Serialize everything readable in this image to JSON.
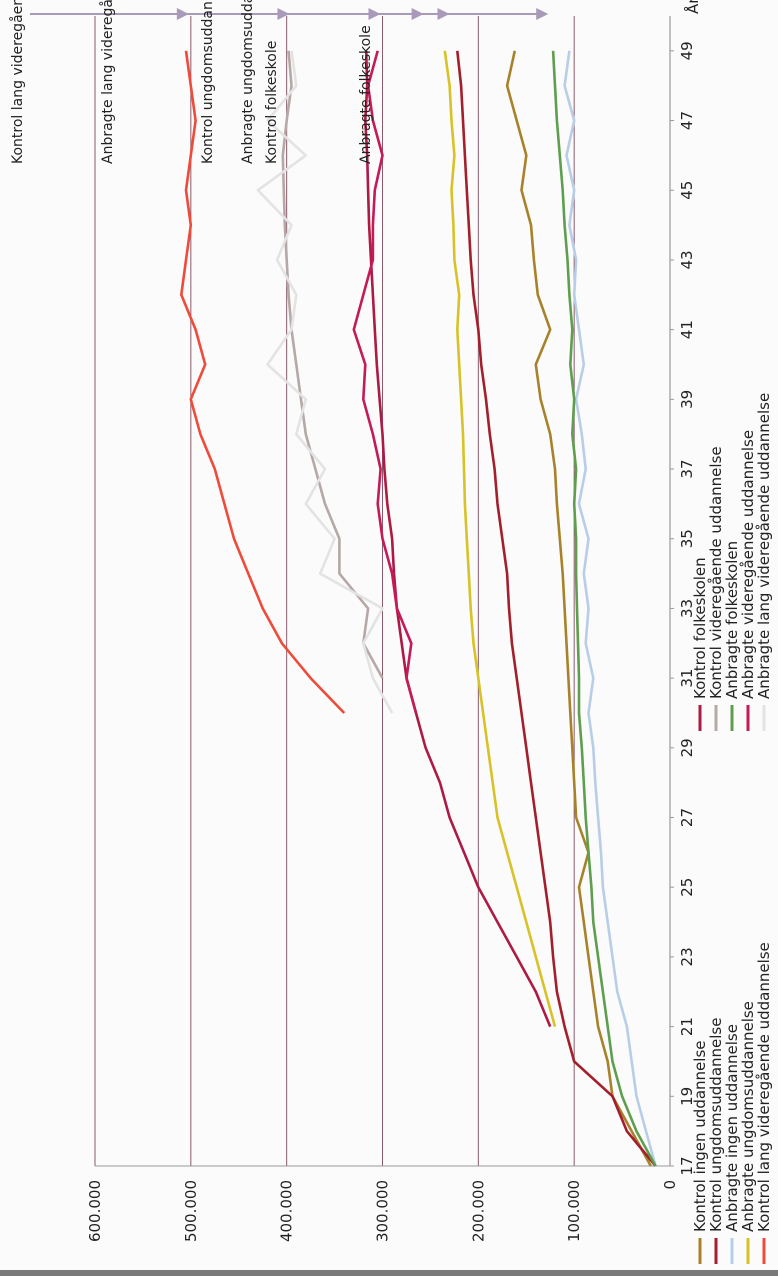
{
  "chart_data": {
    "type": "line",
    "title": "",
    "xlabel": "År",
    "ylabel": "",
    "xlim": [
      17,
      50
    ],
    "ylim": [
      0,
      600000
    ],
    "x_ticks": [
      17,
      19,
      21,
      23,
      25,
      27,
      29,
      31,
      33,
      35,
      37,
      39,
      41,
      43,
      45,
      47,
      49
    ],
    "y_ticks": [
      "0",
      "100.000",
      "200.000",
      "300.000",
      "400.000",
      "500.000",
      "600.000"
    ],
    "y_tick_values": [
      0,
      100000,
      200000,
      300000,
      400000,
      500000,
      600000
    ],
    "grid": "horizontal",
    "legend_position": "bottom",
    "series": [
      {
        "name": "Kontrol ingen uddannelse",
        "color": "#a8822a",
        "x_start": 17,
        "values": [
          20000,
          40000,
          60000,
          65000,
          75000,
          80000,
          85000,
          90000,
          95000,
          85000,
          98000,
          100000,
          102000,
          104000,
          106000,
          108000,
          110000,
          112000,
          115000,
          118000,
          120000,
          125000,
          135000,
          140000,
          125000,
          138000,
          142000,
          145000,
          155000,
          150000,
          160000,
          170000,
          162000
        ]
      },
      {
        "name": "Kontrol ungdomsuddannelse",
        "color": "#a31f2b",
        "x_start": 17,
        "values": [
          15000,
          45000,
          60000,
          100000,
          110000,
          118000,
          122000,
          125000,
          130000,
          135000,
          140000,
          145000,
          150000,
          155000,
          160000,
          165000,
          168000,
          170000,
          175000,
          180000,
          183000,
          188000,
          192000,
          197000,
          200000,
          205000,
          208000,
          210000,
          212000,
          214000,
          216000,
          218000,
          222000
        ]
      },
      {
        "name": "Anbragte ingen uddannelse",
        "color": "#b8cde8",
        "x_start": 17,
        "values": [
          15000,
          25000,
          35000,
          40000,
          45000,
          55000,
          60000,
          65000,
          70000,
          72000,
          75000,
          78000,
          80000,
          85000,
          80000,
          88000,
          85000,
          90000,
          85000,
          95000,
          88000,
          92000,
          98000,
          90000,
          95000,
          100000,
          98000,
          105000,
          100000,
          108000,
          100000,
          110000,
          105000
        ]
      },
      {
        "name": "Anbragte ungdomsuddannelse",
        "color": "#d8c228",
        "x_start": 21,
        "values": [
          120000,
          130000,
          140000,
          150000,
          160000,
          170000,
          180000,
          185000,
          190000,
          195000,
          200000,
          205000,
          208000,
          210000,
          212000,
          214000,
          215000,
          216000,
          218000,
          220000,
          222000,
          220000,
          225000,
          226000,
          228000,
          225000,
          228000,
          230000,
          235000
        ]
      },
      {
        "name": "Kontrol lang videregående uddannelse",
        "color": "#ef4a3a",
        "x_start": 30,
        "values": [
          340000,
          375000,
          405000,
          425000,
          440000,
          455000,
          465000,
          475000,
          490000,
          500000,
          485000,
          495000,
          510000,
          505000,
          500000,
          505000,
          500000,
          495000,
          500000,
          505000
        ]
      },
      {
        "name": "Kontrol folkeskolen",
        "color": "#ad1a44",
        "x_start": 21,
        "values": [
          125000,
          140000,
          160000,
          180000,
          200000,
          215000,
          230000,
          240000,
          255000,
          265000,
          275000,
          280000,
          285000,
          288000,
          290000,
          295000,
          298000,
          300000,
          303000,
          306000,
          308000,
          310000,
          312000,
          314000,
          315000,
          316000,
          318000,
          316000,
          317000
        ]
      },
      {
        "name": "Kontrol videregående uddannelse",
        "color": "#b5a8a6",
        "x_start": 31,
        "values": [
          300000,
          320000,
          315000,
          345000,
          345000,
          360000,
          370000,
          380000,
          385000,
          390000,
          395000,
          398000,
          400000,
          402000,
          403000,
          404000,
          400000,
          395000,
          398000
        ]
      },
      {
        "name": "Anbragte folkeskolen",
        "color": "#5e9e4e",
        "x_start": 17,
        "values": [
          15000,
          35000,
          50000,
          60000,
          65000,
          70000,
          75000,
          80000,
          82000,
          85000,
          88000,
          90000,
          92000,
          95000,
          95000,
          96000,
          97000,
          98000,
          98000,
          100000,
          98000,
          102000,
          100000,
          104000,
          102000,
          105000,
          107000,
          110000,
          112000,
          115000,
          118000,
          120000,
          122000
        ]
      },
      {
        "name": "Anbragte videregående uddannelse",
        "color": "#c41a58",
        "x_start": 30,
        "values": [
          265000,
          275000,
          270000,
          285000,
          290000,
          300000,
          305000,
          302000,
          310000,
          320000,
          318000,
          330000,
          320000,
          310000,
          310000,
          308000,
          300000,
          310000,
          315000,
          305000
        ]
      },
      {
        "name": "Anbragte lang videregående uddannelse",
        "color": "#e3e3e3",
        "x_start": 30,
        "values": [
          290000,
          310000,
          320000,
          300000,
          365000,
          350000,
          380000,
          360000,
          390000,
          380000,
          420000,
          395000,
          390000,
          410000,
          395000,
          430000,
          380000,
          420000,
          390000,
          395000
        ]
      }
    ],
    "annotations": [
      {
        "label": "Kontrol lang videregående",
        "series": "Kontrol lang videregående uddannelse",
        "value": 500000
      },
      {
        "label": "Anbragte lang videregående",
        "series": "Anbragte lang videregående uddannelse",
        "value": 395000
      },
      {
        "label": "Kontrol ungdomsuddannelse",
        "series": "Kontrol videregående uddannelse",
        "value": 300000
      },
      {
        "label": "Anbragte ungdomsuddannelse",
        "series": "Anbragte videregående uddannelse",
        "value": 255000
      },
      {
        "label": "Kontrol folkeskole",
        "series": "Kontrol ungdomsuddannelse",
        "value": 228000
      },
      {
        "label": "Anbragte folkeskole",
        "series": "Anbragte folkeskolen",
        "value": 125000
      }
    ]
  }
}
